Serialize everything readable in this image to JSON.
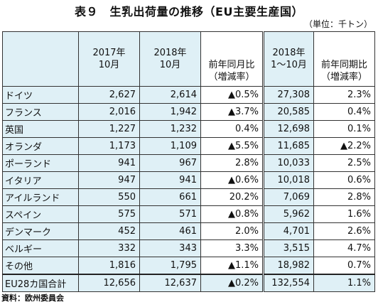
{
  "title": "表９　生乳出荷量の推移（EU主要生産国）",
  "unit": "（単位：千トン）",
  "headers": {
    "col1": "2017年\n10月",
    "col2": "2018年\n10月",
    "col3": "前年同月比\n（増減率）",
    "col4": "2018年\n1～10月",
    "col5": "前年同期比\n（増減率）"
  },
  "rows": [
    {
      "name": "ドイツ",
      "v2017": "2,627",
      "v2018": "2,614",
      "yoy_m": "▲0.5%",
      "ytd": "27,308",
      "yoy_p": "2.3%"
    },
    {
      "name": "フランス",
      "v2017": "2,016",
      "v2018": "1,942",
      "yoy_m": "▲3.7%",
      "ytd": "20,585",
      "yoy_p": "0.4%"
    },
    {
      "name": "英国",
      "v2017": "1,227",
      "v2018": "1,232",
      "yoy_m": "0.4%",
      "ytd": "12,698",
      "yoy_p": "0.1%"
    },
    {
      "name": "オランダ",
      "v2017": "1,173",
      "v2018": "1,109",
      "yoy_m": "▲5.5%",
      "ytd": "11,685",
      "yoy_p": "▲2.2%"
    },
    {
      "name": "ポーランド",
      "v2017": "941",
      "v2018": "967",
      "yoy_m": "2.8%",
      "ytd": "10,033",
      "yoy_p": "2.5%"
    },
    {
      "name": "イタリア",
      "v2017": "947",
      "v2018": "941",
      "yoy_m": "▲0.6%",
      "ytd": "10,018",
      "yoy_p": "0.6%"
    },
    {
      "name": "アイルランド",
      "v2017": "550",
      "v2018": "661",
      "yoy_m": "20.2%",
      "ytd": "7,069",
      "yoy_p": "2.8%"
    },
    {
      "name": "スペイン",
      "v2017": "575",
      "v2018": "571",
      "yoy_m": "▲0.8%",
      "ytd": "5,962",
      "yoy_p": "1.6%"
    },
    {
      "name": "デンマーク",
      "v2017": "452",
      "v2018": "461",
      "yoy_m": "2.0%",
      "ytd": "4,701",
      "yoy_p": "2.6%"
    },
    {
      "name": "ベルギー",
      "v2017": "332",
      "v2018": "343",
      "yoy_m": "3.3%",
      "ytd": "3,515",
      "yoy_p": "4.7%"
    },
    {
      "name": "その他",
      "v2017": "1,816",
      "v2018": "1,795",
      "yoy_m": "▲1.1%",
      "ytd": "18,982",
      "yoy_p": "0.7%"
    }
  ],
  "total": {
    "name": "EU28カ国合計",
    "v2017": "12,656",
    "v2018": "12,637",
    "yoy_m": "▲0.2%",
    "ytd": "132,554",
    "yoy_p": "1.1%"
  },
  "source": "資料：欧州委員会"
}
